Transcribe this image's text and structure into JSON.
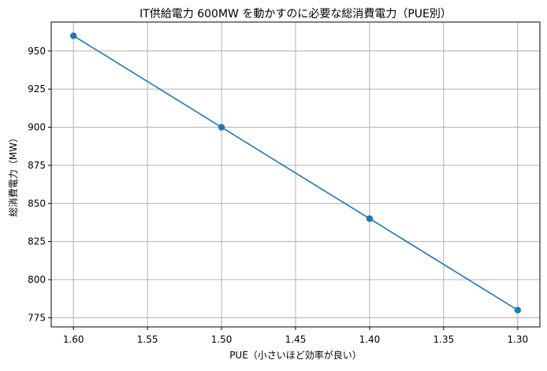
{
  "chart_data": {
    "type": "line",
    "title": "IT供給電力 600MW を動かすのに必要な総消費電力（PUE別）",
    "xlabel": "PUE（小さいほど効率が良い）",
    "ylabel": "総消費電力（MW）",
    "x_inverted": true,
    "xlim": [
      1.615,
      1.285
    ],
    "ylim": [
      769,
      969
    ],
    "xticks": [
      "1.60",
      "1.55",
      "1.50",
      "1.45",
      "1.40",
      "1.35",
      "1.30"
    ],
    "yticks": [
      "775",
      "800",
      "825",
      "850",
      "875",
      "900",
      "925",
      "950"
    ],
    "grid": true,
    "series": [
      {
        "color": "#1f77b4",
        "x": [
          1.6,
          1.5,
          1.4,
          1.3
        ],
        "y": [
          960,
          900,
          840,
          780
        ]
      }
    ]
  }
}
